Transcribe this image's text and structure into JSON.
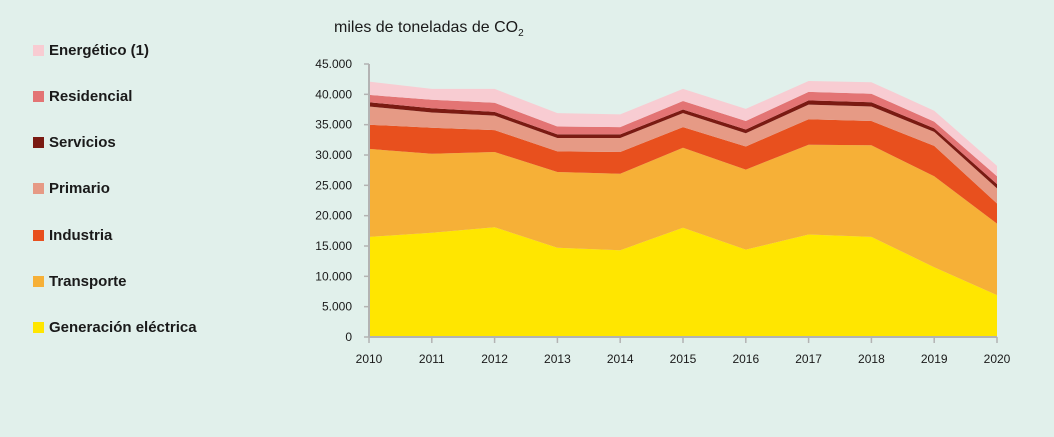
{
  "chart_data": {
    "type": "area",
    "stacked": true,
    "unit_label": "miles de toneladas de CO",
    "unit_subscript": "2",
    "x": [
      "2010",
      "2011",
      "2012",
      "2013",
      "2014",
      "2015",
      "2016",
      "2017",
      "2018",
      "2019",
      "2020"
    ],
    "ylim": [
      0,
      45000
    ],
    "yticks": [
      {
        "value": 0,
        "label": "0"
      },
      {
        "value": 5000,
        "label": "5.000"
      },
      {
        "value": 10000,
        "label": "10.000"
      },
      {
        "value": 15000,
        "label": "15.000"
      },
      {
        "value": 20000,
        "label": "20.000"
      },
      {
        "value": 25000,
        "label": "25.000"
      },
      {
        "value": 30000,
        "label": "30.000"
      },
      {
        "value": 35000,
        "label": "35.000"
      },
      {
        "value": 40000,
        "label": "40.000"
      },
      {
        "value": 45000,
        "label": "45.000"
      }
    ],
    "series": [
      {
        "name": "Generación eléctrica",
        "color": "#ffe600",
        "values": [
          16500,
          17200,
          18100,
          14700,
          14300,
          18000,
          14400,
          16900,
          16500,
          11500,
          6900
        ]
      },
      {
        "name": "Transporte",
        "color": "#f6b037",
        "values": [
          14500,
          13000,
          12400,
          12500,
          12600,
          13200,
          13200,
          14800,
          15100,
          15000,
          11800
        ]
      },
      {
        "name": "Industria",
        "color": "#e8501e",
        "values": [
          4000,
          4300,
          3600,
          3400,
          3600,
          3400,
          3800,
          4200,
          4000,
          5000,
          3300
        ]
      },
      {
        "name": "Primario",
        "color": "#e69a85",
        "values": [
          3000,
          2500,
          2400,
          2200,
          2300,
          2300,
          2200,
          2400,
          2400,
          2300,
          2500
        ]
      },
      {
        "name": "Servicios",
        "color": "#7a1a12",
        "values": [
          700,
          700,
          600,
          600,
          600,
          600,
          600,
          700,
          700,
          600,
          700
        ]
      },
      {
        "name": "Residencial",
        "color": "#e37474",
        "values": [
          1200,
          1400,
          1500,
          1300,
          1200,
          1400,
          1400,
          1400,
          1400,
          1100,
          1300
        ]
      },
      {
        "name": "Energético (1)",
        "color": "#f8ccd2",
        "values": [
          2200,
          1800,
          2300,
          2200,
          2100,
          2000,
          2000,
          1800,
          1900,
          1800,
          1700
        ]
      }
    ]
  }
}
